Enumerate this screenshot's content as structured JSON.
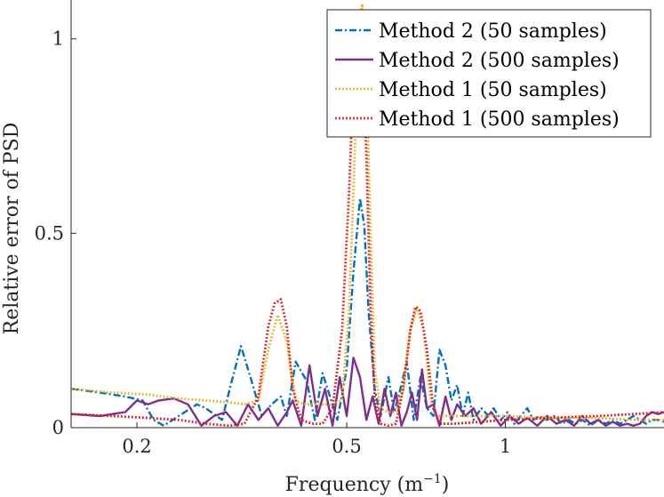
{
  "chart_data": {
    "type": "line",
    "title": "",
    "xlabel": "Frequency (m",
    "xlabel_superscript": "−1",
    "xlabel_suffix": ")",
    "ylabel": "Relative error of PSD",
    "xscale": "log",
    "xlim": [
      0.15,
      2.0
    ],
    "ylim": [
      0,
      1.1
    ],
    "xticks": [
      0.2,
      0.5,
      1
    ],
    "xtick_labels": [
      "0.2",
      "0.5",
      "1"
    ],
    "yticks": [
      0,
      0.5,
      1
    ],
    "ytick_labels": [
      "0",
      "0.5",
      "1"
    ],
    "legend_position": "top-right",
    "series": [
      {
        "name": "Method 2 (50 samples)",
        "color": "#0072BD",
        "style": "dashdot",
        "x": [
          0.15,
          0.17,
          0.19,
          0.205,
          0.215,
          0.225,
          0.24,
          0.26,
          0.27,
          0.29,
          0.3,
          0.315,
          0.33,
          0.345,
          0.36,
          0.375,
          0.385,
          0.4,
          0.42,
          0.435,
          0.45,
          0.465,
          0.48,
          0.5,
          0.515,
          0.53,
          0.54,
          0.55,
          0.565,
          0.58,
          0.6,
          0.615,
          0.63,
          0.65,
          0.67,
          0.69,
          0.71,
          0.73,
          0.75,
          0.77,
          0.79,
          0.81,
          0.83,
          0.85,
          0.87,
          0.9,
          0.93,
          0.95,
          0.98,
          1.01,
          1.04,
          1.07,
          1.1,
          1.13,
          1.16,
          1.2,
          1.24,
          1.28,
          1.32,
          1.36,
          1.4,
          1.45,
          1.5,
          1.55,
          1.6,
          1.65,
          1.7,
          1.75,
          1.8,
          1.85,
          1.9,
          1.95,
          2.0
        ],
        "y": [
          0.1,
          0.09,
          0.08,
          0.07,
          0.02,
          0.005,
          0.03,
          0.06,
          0.05,
          0.02,
          0.1,
          0.21,
          0.12,
          0.03,
          0.06,
          0.08,
          0.03,
          0.17,
          0.12,
          0.02,
          0.14,
          0.08,
          0.02,
          0.15,
          0.4,
          0.59,
          0.52,
          0.3,
          0.1,
          0.03,
          0.13,
          0.04,
          0.09,
          0.17,
          0.02,
          0.13,
          0.05,
          0.03,
          0.2,
          0.16,
          0.07,
          0.11,
          0.03,
          0.09,
          0.02,
          0.05,
          0.03,
          0.05,
          0.02,
          0.04,
          0.01,
          0.03,
          0.05,
          0.02,
          0.03,
          0.02,
          0.03,
          0.01,
          0.02,
          0.01,
          0.02,
          0.005,
          0.02,
          0.01,
          0.02,
          0.01,
          0.02,
          0.03,
          0.02,
          0.01,
          0.02,
          0.02,
          0.015
        ]
      },
      {
        "name": "Method 2 (500 samples)",
        "color": "#7E2F8E",
        "style": "solid",
        "x": [
          0.15,
          0.17,
          0.19,
          0.2,
          0.21,
          0.22,
          0.235,
          0.25,
          0.265,
          0.28,
          0.295,
          0.31,
          0.325,
          0.34,
          0.355,
          0.37,
          0.385,
          0.395,
          0.41,
          0.425,
          0.44,
          0.455,
          0.47,
          0.485,
          0.5,
          0.515,
          0.53,
          0.545,
          0.56,
          0.575,
          0.59,
          0.605,
          0.62,
          0.635,
          0.65,
          0.665,
          0.68,
          0.695,
          0.71,
          0.73,
          0.75,
          0.77,
          0.79,
          0.81,
          0.84,
          0.87,
          0.9,
          0.94,
          0.98,
          1.02,
          1.06,
          1.1,
          1.15,
          1.2,
          1.25,
          1.3,
          1.35,
          1.4,
          1.45,
          1.5,
          1.55,
          1.6,
          1.65,
          1.7,
          1.75,
          1.8,
          1.85,
          1.9,
          1.95,
          2.0
        ],
        "y": [
          0.035,
          0.03,
          0.04,
          0.07,
          0.06,
          0.07,
          0.075,
          0.06,
          0.005,
          0.03,
          0.04,
          0.005,
          0.06,
          0.02,
          0.05,
          0.005,
          0.04,
          0.07,
          0.005,
          0.16,
          0.03,
          0.1,
          0.005,
          0.13,
          0.03,
          0.18,
          0.13,
          0.02,
          0.08,
          0.01,
          0.1,
          0.03,
          0.09,
          0.005,
          0.04,
          0.09,
          0.02,
          0.15,
          0.05,
          0.06,
          0.005,
          0.08,
          0.02,
          0.06,
          0.03,
          0.05,
          0.01,
          0.04,
          0.005,
          0.03,
          0.01,
          0.025,
          0.005,
          0.03,
          0.01,
          0.02,
          0.005,
          0.03,
          0.01,
          0.02,
          0.005,
          0.015,
          0.005,
          0.01,
          0.005,
          0.01,
          0.03,
          0.04,
          0.035,
          0.04
        ]
      },
      {
        "name": "Method 1 (50 samples)",
        "color": "#EDB120",
        "style": "dotted",
        "x": [
          0.15,
          0.18,
          0.21,
          0.24,
          0.27,
          0.3,
          0.32,
          0.34,
          0.355,
          0.37,
          0.385,
          0.4,
          0.415,
          0.43,
          0.45,
          0.47,
          0.49,
          0.505,
          0.515,
          0.525,
          0.535,
          0.545,
          0.555,
          0.565,
          0.58,
          0.6,
          0.62,
          0.64,
          0.66,
          0.68,
          0.7,
          0.72,
          0.74,
          0.76,
          0.8,
          0.9,
          1.0,
          1.2,
          1.5,
          1.75,
          2.0
        ],
        "y": [
          0.1,
          0.09,
          0.085,
          0.075,
          0.07,
          0.065,
          0.06,
          0.07,
          0.2,
          0.29,
          0.22,
          0.07,
          0.06,
          0.06,
          0.06,
          0.06,
          0.07,
          0.3,
          0.6,
          0.95,
          1.09,
          0.9,
          0.5,
          0.15,
          0.05,
          0.04,
          0.04,
          0.1,
          0.25,
          0.31,
          0.25,
          0.08,
          0.03,
          0.03,
          0.03,
          0.03,
          0.03,
          0.025,
          0.025,
          0.02,
          0.02
        ]
      },
      {
        "name": "Method 1 (500 samples)",
        "color": "#E31A1C",
        "style": "dotted",
        "x": [
          0.15,
          0.18,
          0.21,
          0.24,
          0.27,
          0.3,
          0.32,
          0.34,
          0.355,
          0.365,
          0.375,
          0.385,
          0.395,
          0.41,
          0.43,
          0.45,
          0.47,
          0.49,
          0.505,
          0.515,
          0.525,
          0.535,
          0.545,
          0.555,
          0.565,
          0.58,
          0.6,
          0.62,
          0.64,
          0.66,
          0.675,
          0.69,
          0.71,
          0.73,
          0.75,
          0.8,
          0.9,
          1.0,
          1.2,
          1.5,
          1.75,
          2.0
        ],
        "y": [
          0.035,
          0.03,
          0.025,
          0.02,
          0.01,
          0.005,
          0.01,
          0.08,
          0.26,
          0.32,
          0.33,
          0.26,
          0.1,
          0.02,
          0.01,
          0.01,
          0.05,
          0.25,
          0.6,
          0.9,
          1.01,
          0.95,
          0.7,
          0.3,
          0.08,
          0.01,
          0.005,
          0.01,
          0.1,
          0.25,
          0.31,
          0.3,
          0.2,
          0.05,
          0.01,
          0.01,
          0.015,
          0.02,
          0.025,
          0.03,
          0.035,
          0.04
        ]
      }
    ]
  }
}
